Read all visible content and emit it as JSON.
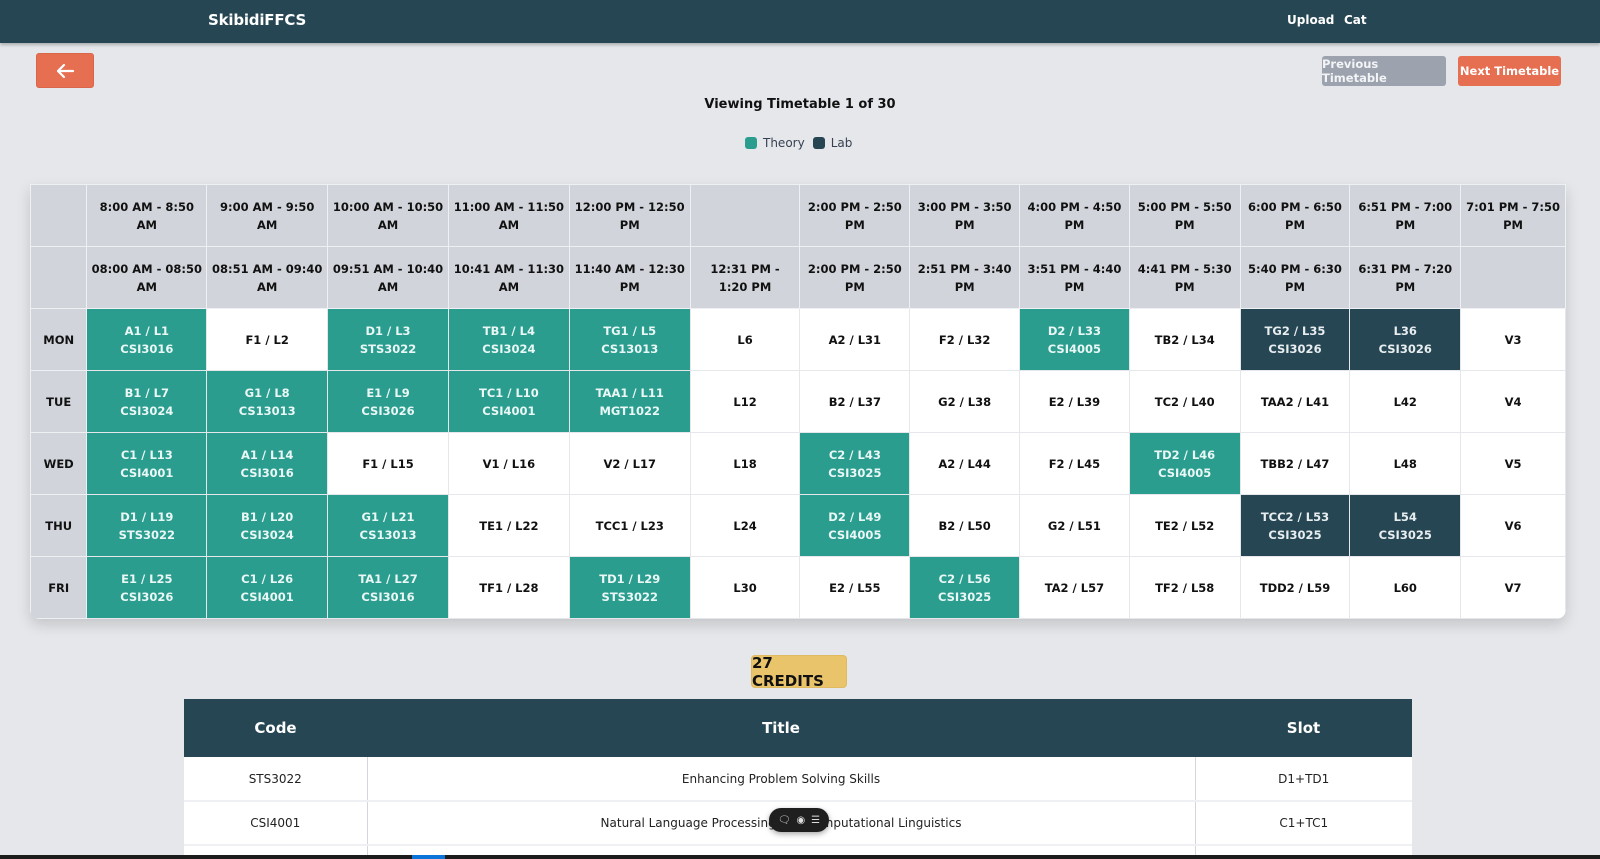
{
  "navbar": {
    "brand": "SkibidiFFCS",
    "links": [
      "Upload",
      "Cat"
    ]
  },
  "controls": {
    "back_icon": "arrow-left-icon",
    "previous_label": "Previous Timetable",
    "next_label": "Next Timetable"
  },
  "viewing": "Viewing Timetable 1 of 30",
  "legend": {
    "theory_label": "Theory",
    "lab_label": "Lab",
    "theory_color": "#2a9d8f",
    "lab_color": "#264653"
  },
  "timetable": {
    "theory_times": [
      "8:00 AM - 8:50 AM",
      "9:00 AM - 9:50 AM",
      "10:00 AM - 10:50 AM",
      "11:00 AM - 11:50 AM",
      "12:00 PM - 12:50 PM",
      "",
      "2:00 PM - 2:50 PM",
      "3:00 PM - 3:50 PM",
      "4:00 PM - 4:50 PM",
      "5:00 PM - 5:50 PM",
      "6:00 PM - 6:50 PM",
      "6:51 PM - 7:00 PM",
      "7:01 PM - 7:50 PM"
    ],
    "lab_times": [
      "08:00 AM - 08:50 AM",
      "08:51 AM - 09:40 AM",
      "09:51 AM - 10:40 AM",
      "10:41 AM - 11:30 AM",
      "11:40 AM - 12:30 PM",
      "12:31 PM - 1:20 PM",
      "2:00 PM - 2:50 PM",
      "2:51 PM - 3:40 PM",
      "3:51 PM - 4:40 PM",
      "4:41 PM - 5:30 PM",
      "5:40 PM - 6:30 PM",
      "6:31 PM - 7:20 PM",
      ""
    ],
    "rows": [
      {
        "day": "MON",
        "cells": [
          {
            "slot": "A1 / L1",
            "course": "CSI3016",
            "type": "theory"
          },
          {
            "slot": "F1 / L2",
            "course": "",
            "type": "free"
          },
          {
            "slot": "D1 / L3",
            "course": "STS3022",
            "type": "theory"
          },
          {
            "slot": "TB1 / L4",
            "course": "CSI3024",
            "type": "theory"
          },
          {
            "slot": "TG1 / L5",
            "course": "CS13013",
            "type": "theory"
          },
          {
            "slot": "L6",
            "course": "",
            "type": "free"
          },
          {
            "slot": "A2 / L31",
            "course": "",
            "type": "free"
          },
          {
            "slot": "F2 / L32",
            "course": "",
            "type": "free"
          },
          {
            "slot": "D2 / L33",
            "course": "CSI4005",
            "type": "theory"
          },
          {
            "slot": "TB2 / L34",
            "course": "",
            "type": "free"
          },
          {
            "slot": "TG2 / L35",
            "course": "CSI3026",
            "type": "lab"
          },
          {
            "slot": "L36",
            "course": "CSI3026",
            "type": "lab"
          },
          {
            "slot": "V3",
            "course": "",
            "type": "free"
          }
        ]
      },
      {
        "day": "TUE",
        "cells": [
          {
            "slot": "B1 / L7",
            "course": "CSI3024",
            "type": "theory"
          },
          {
            "slot": "G1 / L8",
            "course": "CS13013",
            "type": "theory"
          },
          {
            "slot": "E1 / L9",
            "course": "CSI3026",
            "type": "theory"
          },
          {
            "slot": "TC1 / L10",
            "course": "CSI4001",
            "type": "theory"
          },
          {
            "slot": "TAA1 / L11",
            "course": "MGT1022",
            "type": "theory"
          },
          {
            "slot": "L12",
            "course": "",
            "type": "free"
          },
          {
            "slot": "B2 / L37",
            "course": "",
            "type": "free"
          },
          {
            "slot": "G2 / L38",
            "course": "",
            "type": "free"
          },
          {
            "slot": "E2 / L39",
            "course": "",
            "type": "free"
          },
          {
            "slot": "TC2 / L40",
            "course": "",
            "type": "free"
          },
          {
            "slot": "TAA2 / L41",
            "course": "",
            "type": "free"
          },
          {
            "slot": "L42",
            "course": "",
            "type": "free"
          },
          {
            "slot": "V4",
            "course": "",
            "type": "free"
          }
        ]
      },
      {
        "day": "WED",
        "cells": [
          {
            "slot": "C1 / L13",
            "course": "CSI4001",
            "type": "theory"
          },
          {
            "slot": "A1 / L14",
            "course": "CSI3016",
            "type": "theory"
          },
          {
            "slot": "F1 / L15",
            "course": "",
            "type": "free"
          },
          {
            "slot": "V1 / L16",
            "course": "",
            "type": "free"
          },
          {
            "slot": "V2 / L17",
            "course": "",
            "type": "free"
          },
          {
            "slot": "L18",
            "course": "",
            "type": "free"
          },
          {
            "slot": "C2 / L43",
            "course": "CSI3025",
            "type": "theory"
          },
          {
            "slot": "A2 / L44",
            "course": "",
            "type": "free"
          },
          {
            "slot": "F2 / L45",
            "course": "",
            "type": "free"
          },
          {
            "slot": "TD2 / L46",
            "course": "CSI4005",
            "type": "theory"
          },
          {
            "slot": "TBB2 / L47",
            "course": "",
            "type": "free"
          },
          {
            "slot": "L48",
            "course": "",
            "type": "free"
          },
          {
            "slot": "V5",
            "course": "",
            "type": "free"
          }
        ]
      },
      {
        "day": "THU",
        "cells": [
          {
            "slot": "D1 / L19",
            "course": "STS3022",
            "type": "theory"
          },
          {
            "slot": "B1 / L20",
            "course": "CSI3024",
            "type": "theory"
          },
          {
            "slot": "G1 / L21",
            "course": "CS13013",
            "type": "theory"
          },
          {
            "slot": "TE1 / L22",
            "course": "",
            "type": "free"
          },
          {
            "slot": "TCC1 / L23",
            "course": "",
            "type": "free"
          },
          {
            "slot": "L24",
            "course": "",
            "type": "free"
          },
          {
            "slot": "D2 / L49",
            "course": "CSI4005",
            "type": "theory"
          },
          {
            "slot": "B2 / L50",
            "course": "",
            "type": "free"
          },
          {
            "slot": "G2 / L51",
            "course": "",
            "type": "free"
          },
          {
            "slot": "TE2 / L52",
            "course": "",
            "type": "free"
          },
          {
            "slot": "TCC2 / L53",
            "course": "CSI3025",
            "type": "lab"
          },
          {
            "slot": "L54",
            "course": "CSI3025",
            "type": "lab"
          },
          {
            "slot": "V6",
            "course": "",
            "type": "free"
          }
        ]
      },
      {
        "day": "FRI",
        "cells": [
          {
            "slot": "E1 / L25",
            "course": "CSI3026",
            "type": "theory"
          },
          {
            "slot": "C1 / L26",
            "course": "CSI4001",
            "type": "theory"
          },
          {
            "slot": "TA1 / L27",
            "course": "CSI3016",
            "type": "theory"
          },
          {
            "slot": "TF1 / L28",
            "course": "",
            "type": "free"
          },
          {
            "slot": "TD1 / L29",
            "course": "STS3022",
            "type": "theory"
          },
          {
            "slot": "L30",
            "course": "",
            "type": "free"
          },
          {
            "slot": "E2 / L55",
            "course": "",
            "type": "free"
          },
          {
            "slot": "C2 / L56",
            "course": "CSI3025",
            "type": "theory"
          },
          {
            "slot": "TA2 / L57",
            "course": "",
            "type": "free"
          },
          {
            "slot": "TF2 / L58",
            "course": "",
            "type": "free"
          },
          {
            "slot": "TDD2 / L59",
            "course": "",
            "type": "free"
          },
          {
            "slot": "L60",
            "course": "",
            "type": "free"
          },
          {
            "slot": "V7",
            "course": "",
            "type": "free"
          }
        ]
      }
    ]
  },
  "credits": "27 CREDITS",
  "courses": {
    "headers": [
      "Code",
      "Title",
      "Slot"
    ],
    "rows": [
      {
        "code": "STS3022",
        "title": "Enhancing Problem Solving Skills",
        "slot": "D1+TD1"
      },
      {
        "code": "CSI4001",
        "title": "Natural Language Processing and Computational Linguistics",
        "slot": "C1+TC1"
      }
    ]
  },
  "floating_toolbar": {
    "icons": [
      "comment-icon",
      "record-icon",
      "menu-icon"
    ]
  }
}
